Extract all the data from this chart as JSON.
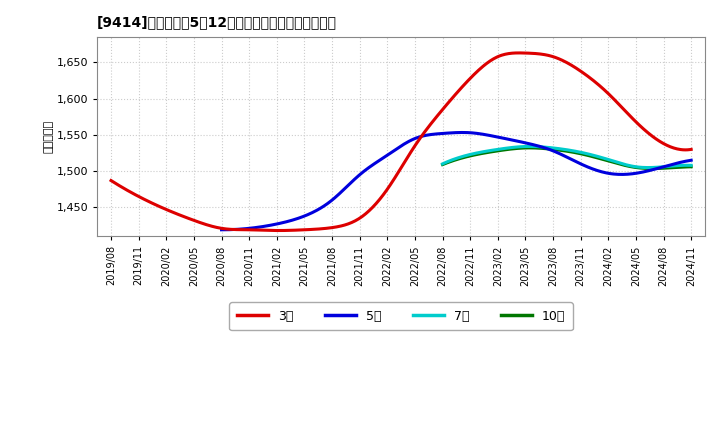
{
  "title": "［9414］ 当期累紡5年12か月移動合計の平均値の推移",
  "title_display": "[9414]　当期累紡5年12か月移動合計の平均値の推移",
  "ylabel": "（百万円）",
  "ylim": [
    1410,
    1685
  ],
  "yticks": [
    1450,
    1500,
    1550,
    1600,
    1650
  ],
  "background_color": "#ffffff",
  "plot_bg_color": "#ffffff",
  "grid_color": "#cccccc",
  "x_labels": [
    "2019/08",
    "2019/11",
    "2020/02",
    "2020/05",
    "2020/08",
    "2020/11",
    "2021/02",
    "2021/05",
    "2021/08",
    "2021/11",
    "2022/02",
    "2022/05",
    "2022/08",
    "2022/11",
    "2023/02",
    "2023/05",
    "2023/08",
    "2023/11",
    "2024/02",
    "2024/05",
    "2024/08",
    "2024/11"
  ],
  "series_3year_color": "#dd0000",
  "series_3year_label": "3年",
  "series_5year_color": "#0000dd",
  "series_5year_label": "5年",
  "series_7year_color": "#00cccc",
  "series_7year_label": "7年",
  "series_10year_color": "#007700",
  "series_10year_label": "10年",
  "linewidth": 2.2
}
